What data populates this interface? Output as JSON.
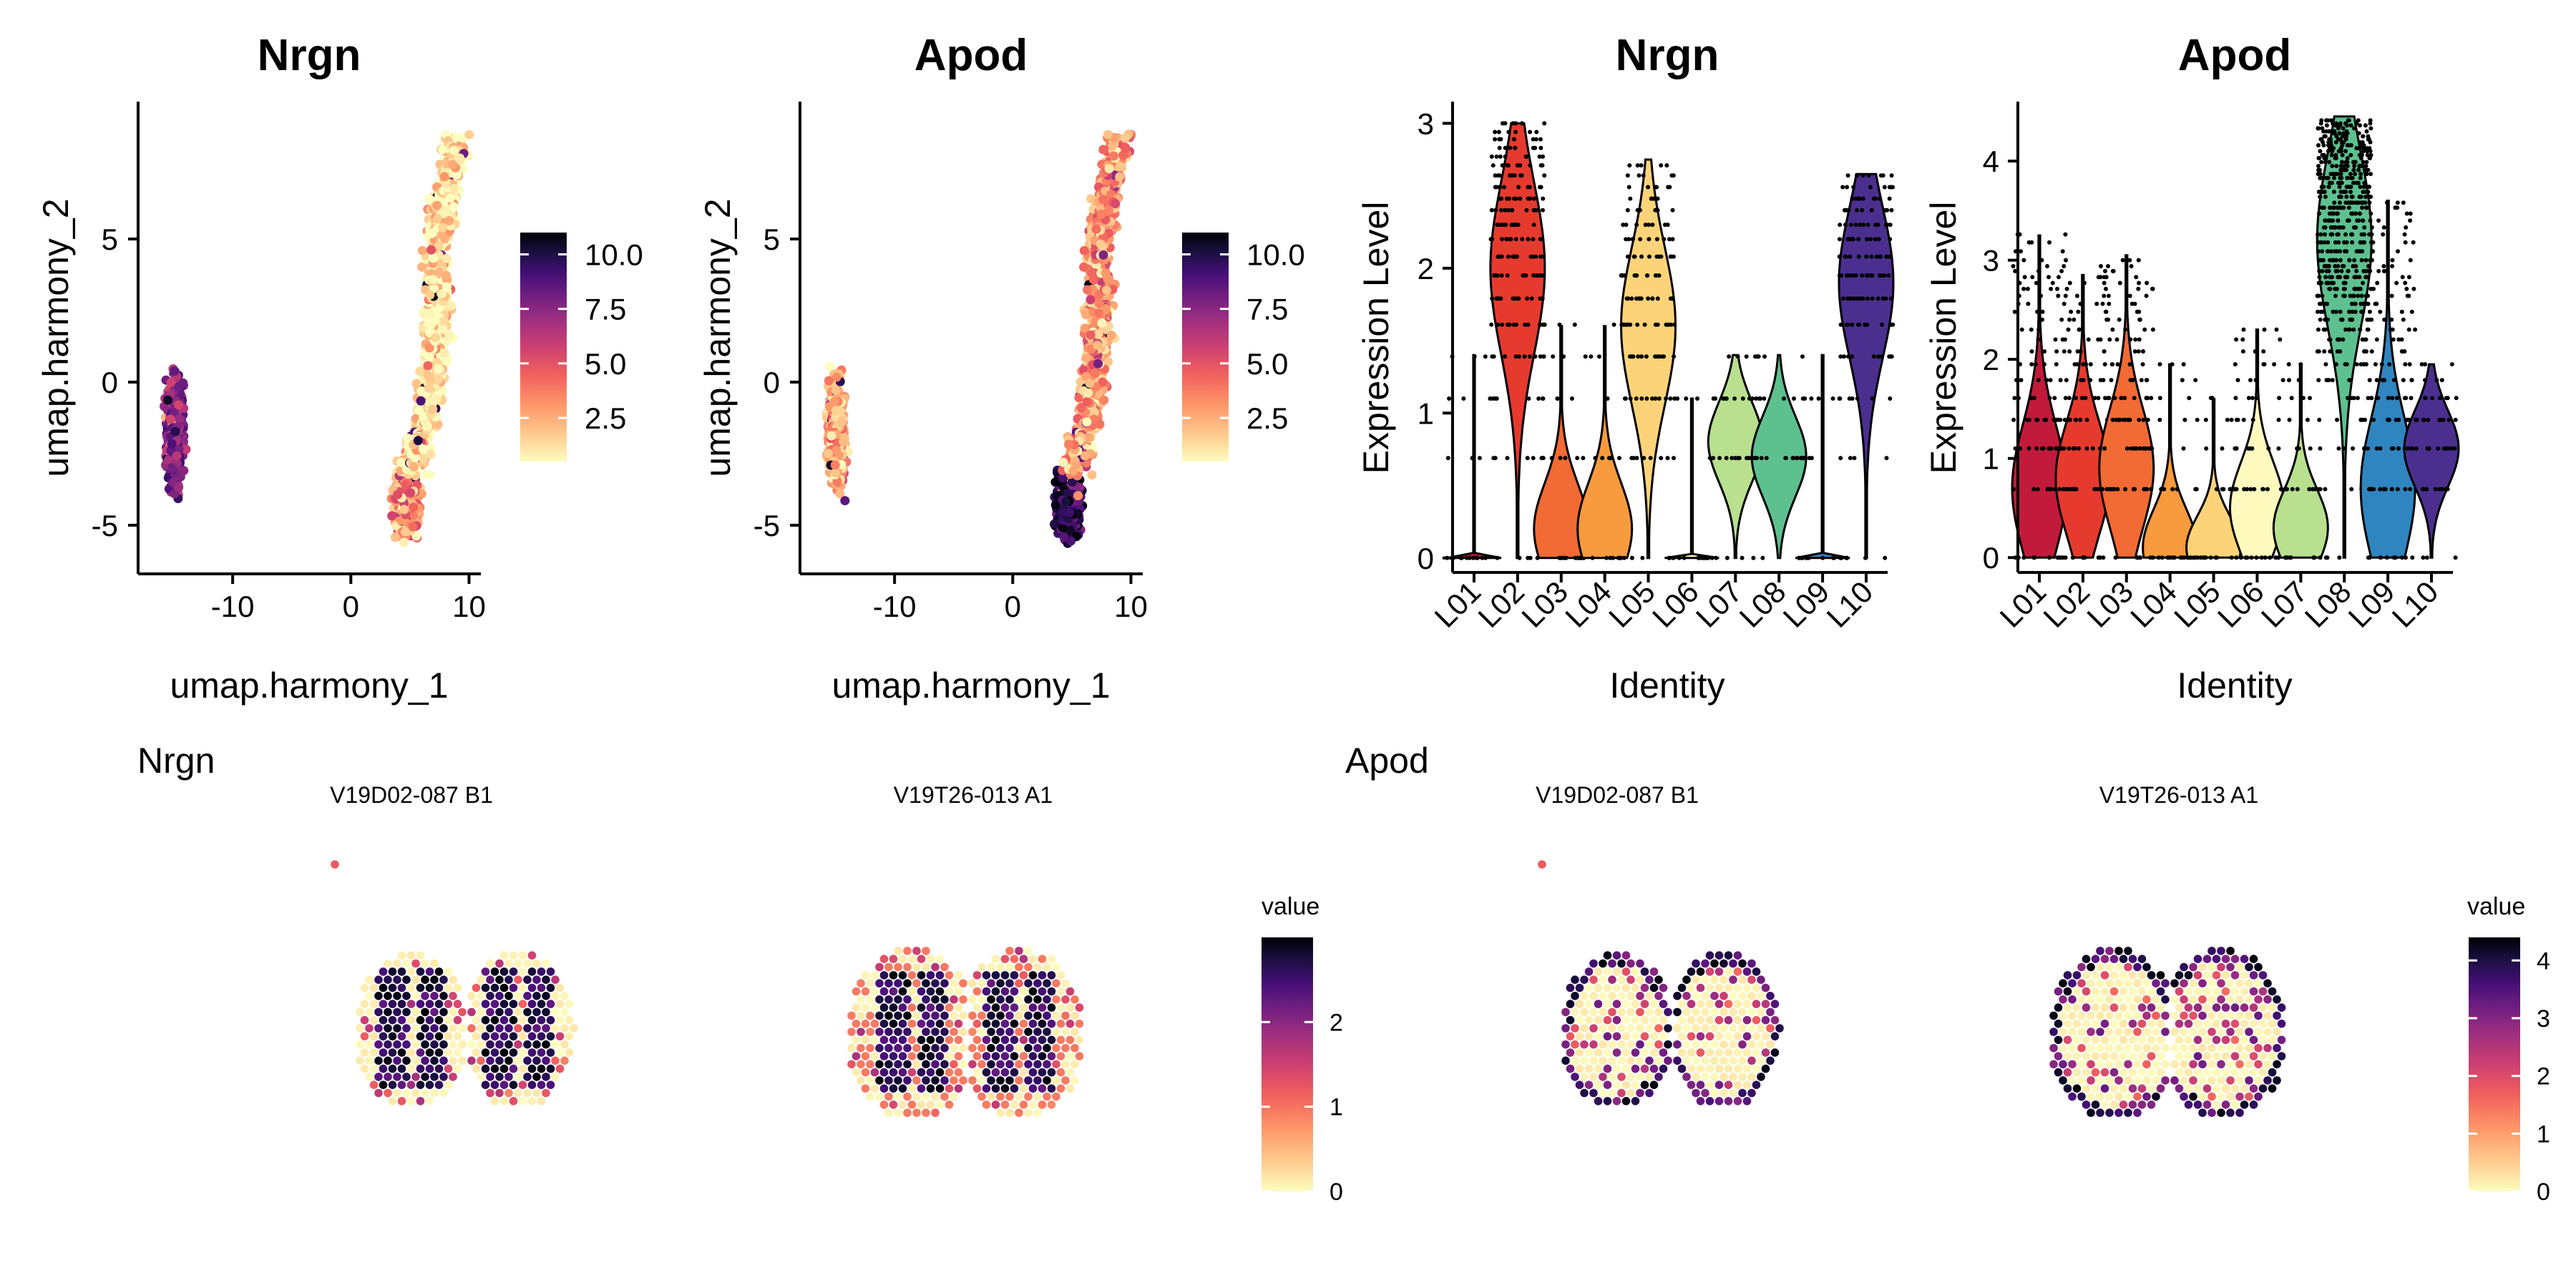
{
  "colors": {
    "magma_scale": [
      "#fcfdbf",
      "#feca8d",
      "#fd9668",
      "#f1605d",
      "#cd4071",
      "#9e2f7f",
      "#721f81",
      "#440f76",
      "#180f3d",
      "#000004"
    ],
    "spectral_identity": {
      "L01": "#c21a3b",
      "L02": "#e63a2f",
      "L03": "#f26a34",
      "L04": "#f89a3e",
      "L05": "#fdd37a",
      "L06": "#fffbbf",
      "L07": "#b8e08f",
      "L08": "#5dc18f",
      "L09": "#2f85c0",
      "L10": "#4a2f8f"
    }
  },
  "chart_data": [
    {
      "type": "scatter",
      "title": "Nrgn",
      "xlabel": "umap.harmony_1",
      "ylabel": "umap.harmony_2",
      "xticks": [
        "-10",
        "0",
        "10"
      ],
      "yticks": [
        "-5",
        "0",
        "5"
      ],
      "xlim": [
        -18,
        11
      ],
      "ylim": [
        -6.7,
        9.8
      ],
      "legend": {
        "ticks": [
          "10.0",
          "7.5",
          "5.0",
          "2.5"
        ],
        "range": [
          0.5,
          11
        ]
      },
      "clusters": [
        {
          "cx": -14.9,
          "cy": -1.8,
          "rx": 1.1,
          "ry": 2.7,
          "level": 0.62
        },
        {
          "cx": 4.7,
          "cy": -4.2,
          "rx": 1.5,
          "ry": 1.6,
          "level": 0.25
        },
        {
          "cx": 7.7,
          "cy": 3.5,
          "rx": 1.8,
          "ry": 5.0,
          "level": 0.06
        }
      ]
    },
    {
      "type": "scatter",
      "title": "Apod",
      "xlabel": "umap.harmony_1",
      "ylabel": "umap.harmony_2",
      "xticks": [
        "-10",
        "0",
        "10"
      ],
      "yticks": [
        "-5",
        "0",
        "5"
      ],
      "xlim": [
        -18,
        11
      ],
      "ylim": [
        -6.7,
        9.8
      ],
      "legend": {
        "ticks": [
          "10.0",
          "7.5",
          "5.0",
          "2.5"
        ],
        "range": [
          0.5,
          11
        ]
      },
      "clusters": [
        {
          "cx": -14.9,
          "cy": -1.8,
          "rx": 1.1,
          "ry": 2.7,
          "level": 0.18
        },
        {
          "cx": 4.7,
          "cy": -4.2,
          "rx": 1.5,
          "ry": 1.6,
          "level": 0.85
        },
        {
          "cx": 7.7,
          "cy": 3.5,
          "rx": 1.8,
          "ry": 5.0,
          "level": 0.22
        }
      ]
    },
    {
      "type": "violin",
      "title": "Nrgn",
      "xlabel": "Identity",
      "ylabel": "Expression Level",
      "categories": [
        "L01",
        "L02",
        "L03",
        "L04",
        "L05",
        "L06",
        "L07",
        "L08",
        "L09",
        "L10"
      ],
      "yticks": [
        0,
        1,
        2,
        3
      ],
      "ylim": [
        -0.1,
        3.15
      ],
      "max": [
        1.4,
        3.0,
        1.6,
        1.6,
        2.75,
        1.1,
        1.4,
        1.4,
        1.4,
        2.65
      ],
      "mode": [
        0.0,
        2.0,
        0.2,
        0.2,
        1.6,
        0.0,
        0.8,
        0.7,
        0.0,
        1.9
      ],
      "levels": [
        0,
        0.69,
        1.1,
        1.39,
        1.61,
        1.79,
        1.95,
        2.08,
        2.2,
        2.3,
        2.4,
        2.48,
        2.56,
        2.64,
        2.71,
        2.77,
        2.83,
        2.89,
        2.94,
        3.0
      ]
    },
    {
      "type": "violin",
      "title": "Apod",
      "xlabel": "Identity",
      "ylabel": "Expression Level",
      "categories": [
        "L01",
        "L02",
        "L03",
        "L04",
        "L05",
        "L06",
        "L07",
        "L08",
        "L09",
        "L10"
      ],
      "yticks": [
        0,
        1,
        2,
        3,
        4
      ],
      "ylim": [
        -0.15,
        4.6
      ],
      "max": [
        3.25,
        2.85,
        3.05,
        1.95,
        1.6,
        2.3,
        1.95,
        4.45,
        3.6,
        1.95
      ],
      "mode": [
        0.7,
        0.8,
        0.9,
        0.1,
        0.1,
        0.5,
        0.3,
        3.2,
        0.7,
        1.1
      ],
      "levels": [
        0,
        0.69,
        1.1,
        1.39,
        1.61,
        1.79,
        1.95,
        2.08,
        2.2,
        2.3,
        2.4,
        2.48,
        2.56,
        2.64,
        2.71,
        2.77,
        2.83,
        2.89,
        2.94,
        3.0,
        3.09,
        3.18,
        3.26,
        3.33,
        3.4,
        3.47,
        3.53,
        3.58,
        3.64,
        3.69,
        3.74,
        3.78,
        3.83,
        3.87,
        3.91,
        3.95,
        3.99,
        4.03,
        4.06,
        4.1,
        4.13,
        4.16,
        4.19,
        4.22,
        4.25,
        4.28,
        4.3,
        4.33,
        4.36,
        4.38,
        4.41
      ]
    }
  ],
  "spatial": [
    {
      "gene": "Nrgn",
      "samples": [
        "V19D02-087  B1",
        "V19T26-013  A1"
      ],
      "legend_title": "value",
      "legend_ticks": [
        "2",
        "1",
        "0"
      ],
      "legend_range": [
        0,
        3
      ]
    },
    {
      "gene": "Apod",
      "samples": [
        "V19D02-087  B1",
        "V19T26-013  A1"
      ],
      "legend_title": "value",
      "legend_ticks": [
        "4",
        "3",
        "2",
        "1",
        "0"
      ],
      "legend_range": [
        0,
        4.4
      ]
    }
  ]
}
